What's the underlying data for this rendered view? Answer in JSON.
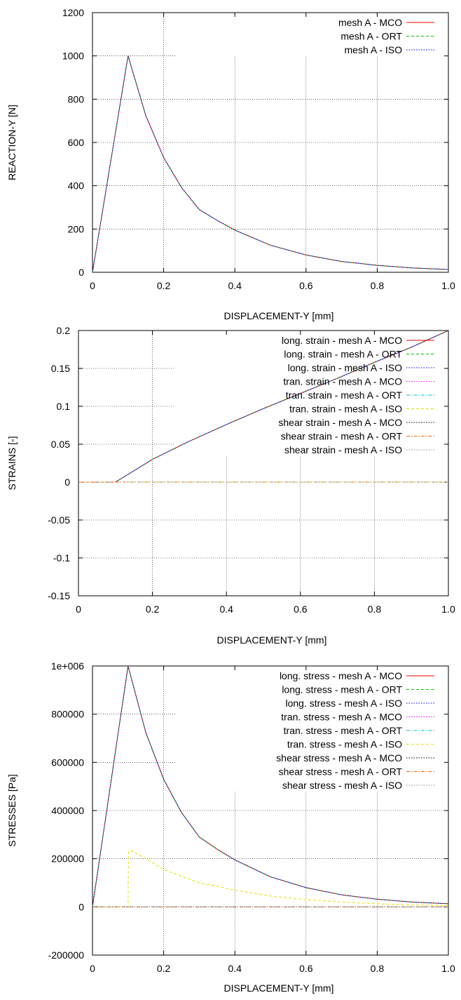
{
  "chart_data": [
    {
      "type": "line",
      "xlabel": "DISPLACEMENT-Y [mm]",
      "ylabel": "REACTION-Y [N]",
      "xlim": [
        0,
        1
      ],
      "ylim": [
        0,
        1200
      ],
      "xticks": [
        "0",
        "0.2",
        "0.4",
        "0.6",
        "0.8",
        "1.0"
      ],
      "yticks": [
        "0",
        "200",
        "400",
        "600",
        "800",
        "1000",
        "1200"
      ],
      "grid": true,
      "legend_position": "top-right",
      "series": [
        {
          "name": "mesh A - MCO",
          "color": "#ff0000",
          "dash": "solid",
          "x": [
            0,
            0.1,
            0.15,
            0.2,
            0.25,
            0.3,
            0.35,
            0.4,
            0.5,
            0.6,
            0.7,
            0.8,
            0.9,
            1.0
          ],
          "y": [
            0,
            1000,
            723,
            530,
            392,
            290,
            240,
            195,
            125,
            80,
            50,
            32,
            20,
            13
          ]
        },
        {
          "name": "mesh A - ORT",
          "color": "#00c000",
          "dash": "dashed",
          "x": [
            0,
            0.1,
            0.15,
            0.2,
            0.25,
            0.3,
            0.35,
            0.4,
            0.5,
            0.6,
            0.7,
            0.8,
            0.9,
            1.0
          ],
          "y": [
            0,
            1000,
            723,
            530,
            392,
            290,
            240,
            195,
            125,
            80,
            50,
            32,
            20,
            13
          ]
        },
        {
          "name": "mesh A - ISO",
          "color": "#0000ff",
          "dash": "dotted",
          "x": [
            0,
            0.1,
            0.15,
            0.2,
            0.25,
            0.3,
            0.35,
            0.4,
            0.5,
            0.6,
            0.7,
            0.8,
            0.9,
            1.0
          ],
          "y": [
            0,
            1000,
            723,
            530,
            392,
            290,
            240,
            195,
            125,
            80,
            50,
            32,
            20,
            13
          ]
        }
      ]
    },
    {
      "type": "line",
      "xlabel": "DISPLACEMENT-Y [mm]",
      "ylabel": "STRAINS [-]",
      "xlim": [
        0,
        1
      ],
      "ylim": [
        -0.15,
        0.2
      ],
      "xticks": [
        "0",
        "0.2",
        "0.4",
        "0.6",
        "0.8",
        "1.0"
      ],
      "yticks": [
        "-0.15",
        "-0.1",
        "-0.05",
        "0",
        "0.05",
        "0.1",
        "0.15",
        "0.2"
      ],
      "grid": true,
      "legend_position": "top-right",
      "series": [
        {
          "name": "long. strain - mesh A - MCO",
          "color": "#ff0000",
          "dash": "solid",
          "x": [
            0,
            0.1,
            0.2,
            0.3,
            0.4,
            0.5,
            0.6,
            0.7,
            0.8,
            0.9,
            1.0
          ],
          "y": [
            0,
            0,
            0.03,
            0.054,
            0.076,
            0.097,
            0.117,
            0.137,
            0.158,
            0.178,
            0.2
          ]
        },
        {
          "name": "long. strain - mesh A - ORT",
          "color": "#00c000",
          "dash": "dashed",
          "x": [
            0,
            0.1,
            0.2,
            0.3,
            0.4,
            0.5,
            0.6,
            0.7,
            0.8,
            0.9,
            1.0
          ],
          "y": [
            0,
            0,
            0.03,
            0.054,
            0.076,
            0.097,
            0.117,
            0.137,
            0.158,
            0.178,
            0.2
          ]
        },
        {
          "name": "long. strain - mesh A - ISO",
          "color": "#0000ff",
          "dash": "dotted",
          "x": [
            0,
            0.1,
            0.2,
            0.3,
            0.4,
            0.5,
            0.6,
            0.7,
            0.8,
            0.9,
            1.0
          ],
          "y": [
            0,
            0,
            0.03,
            0.054,
            0.076,
            0.097,
            0.117,
            0.137,
            0.158,
            0.178,
            0.2
          ]
        },
        {
          "name": "tran. strain - mesh A - MCO",
          "color": "#ff00ff",
          "dash": "dotted",
          "x": [
            0,
            1.0
          ],
          "y": [
            0,
            0
          ]
        },
        {
          "name": "tran. strain - mesh A - ORT",
          "color": "#00c0c0",
          "dash": "dashdot",
          "x": [
            0,
            1.0
          ],
          "y": [
            0,
            0
          ]
        },
        {
          "name": "tran. strain - mesh A - ISO",
          "color": "#e0e000",
          "dash": "dashed",
          "x": [
            0,
            1.0
          ],
          "y": [
            0,
            0
          ]
        },
        {
          "name": "shear strain - mesh A - MCO",
          "color": "#000000",
          "dash": "dotted",
          "x": [
            0,
            1.0
          ],
          "y": [
            0,
            0
          ]
        },
        {
          "name": "shear strain - mesh A - ORT",
          "color": "#ff6000",
          "dash": "dashdot",
          "x": [
            0,
            1.0
          ],
          "y": [
            0,
            0
          ]
        },
        {
          "name": "shear strain - mesh A - ISO",
          "color": "#909090",
          "dash": "dotted",
          "x": [
            0,
            1.0
          ],
          "y": [
            0,
            0
          ]
        }
      ]
    },
    {
      "type": "line",
      "xlabel": "DISPLACEMENT-Y [mm]",
      "ylabel": "STRESSES [Pa]",
      "xlim": [
        0,
        1
      ],
      "ylim": [
        -200000,
        1000000
      ],
      "xticks": [
        "0",
        "0.2",
        "0.4",
        "0.6",
        "0.8",
        "1.0"
      ],
      "yticks": [
        "-200000",
        "0",
        "200000",
        "400000",
        "600000",
        "800000",
        "1e+006"
      ],
      "grid": true,
      "legend_position": "top-right",
      "series": [
        {
          "name": "long. stress - mesh A - MCO",
          "color": "#ff0000",
          "dash": "solid",
          "x": [
            0,
            0.1,
            0.15,
            0.2,
            0.25,
            0.3,
            0.35,
            0.4,
            0.5,
            0.6,
            0.7,
            0.8,
            0.9,
            1.0
          ],
          "y": [
            0,
            1000000,
            723000,
            530000,
            392000,
            290000,
            240000,
            195000,
            125000,
            80000,
            50000,
            32000,
            20000,
            13000
          ]
        },
        {
          "name": "long. stress - mesh A - ORT",
          "color": "#00c000",
          "dash": "dashed",
          "x": [
            0,
            0.1,
            0.15,
            0.2,
            0.25,
            0.3,
            0.35,
            0.4,
            0.5,
            0.6,
            0.7,
            0.8,
            0.9,
            1.0
          ],
          "y": [
            0,
            1000000,
            723000,
            530000,
            392000,
            290000,
            240000,
            195000,
            125000,
            80000,
            50000,
            32000,
            20000,
            13000
          ]
        },
        {
          "name": "long. stress - mesh A - ISO",
          "color": "#0000ff",
          "dash": "dotted",
          "x": [
            0,
            0.1,
            0.15,
            0.2,
            0.25,
            0.3,
            0.35,
            0.4,
            0.5,
            0.6,
            0.7,
            0.8,
            0.9,
            1.0
          ],
          "y": [
            0,
            1000000,
            723000,
            530000,
            392000,
            290000,
            240000,
            195000,
            125000,
            80000,
            50000,
            32000,
            20000,
            13000
          ]
        },
        {
          "name": "tran. stress - mesh A - MCO",
          "color": "#ff00ff",
          "dash": "dotted",
          "x": [
            0,
            1.0
          ],
          "y": [
            0,
            0
          ]
        },
        {
          "name": "tran. stress - mesh A - ORT",
          "color": "#00c0c0",
          "dash": "dashdot",
          "x": [
            0,
            1.0
          ],
          "y": [
            0,
            0
          ]
        },
        {
          "name": "tran. stress - mesh A - ISO",
          "color": "#e0e000",
          "dash": "dashed",
          "x": [
            0,
            0.1,
            0.101,
            0.11,
            0.15,
            0.2,
            0.3,
            0.4,
            0.5,
            0.6,
            0.7,
            0.8,
            0.9,
            1.0
          ],
          "y": [
            0,
            0,
            230000,
            232000,
            200000,
            155000,
            100000,
            70000,
            45000,
            30000,
            20000,
            13000,
            8000,
            5000
          ]
        },
        {
          "name": "shear stress - mesh A - MCO",
          "color": "#000000",
          "dash": "dotted",
          "x": [
            0,
            1.0
          ],
          "y": [
            0,
            0
          ]
        },
        {
          "name": "shear stress - mesh A - ORT",
          "color": "#ff6000",
          "dash": "dashdot",
          "x": [
            0,
            1.0
          ],
          "y": [
            0,
            0
          ]
        },
        {
          "name": "shear stress - mesh A - ISO",
          "color": "#909090",
          "dash": "dotted",
          "x": [
            0,
            1.0
          ],
          "y": [
            0,
            0
          ]
        }
      ]
    }
  ]
}
